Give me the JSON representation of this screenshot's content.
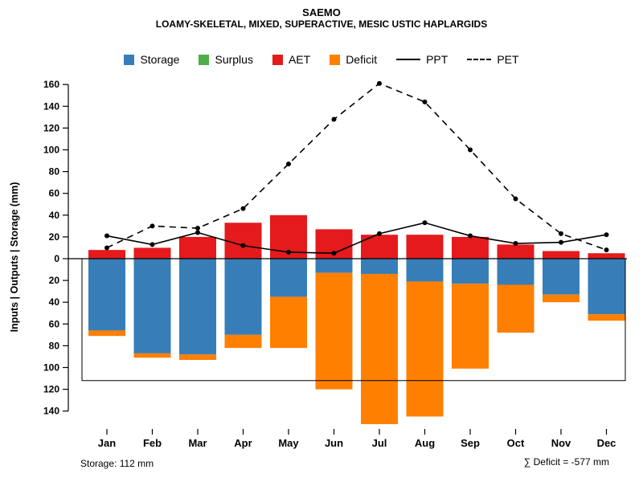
{
  "header": {
    "title": "SAEMO",
    "subtitle": "LOAMY-SKELETAL, MIXED, SUPERACTIVE, MESIC USTIC HAPLARGIDS"
  },
  "footer": {
    "storage_label": "Storage: 112 mm",
    "deficit_label": "∑ Deficit = -577 mm"
  },
  "colors": {
    "storage": "#377eb8",
    "surplus": "#4daf4a",
    "aet": "#e41a1c",
    "deficit": "#ff7f00",
    "line": "#000000",
    "background": "#ffffff"
  },
  "legend": [
    {
      "label": "Storage",
      "swatch": "box",
      "color": "#377eb8"
    },
    {
      "label": "Surplus",
      "swatch": "box",
      "color": "#4daf4a"
    },
    {
      "label": "AET",
      "swatch": "box",
      "color": "#e41a1c"
    },
    {
      "label": "Deficit",
      "swatch": "box",
      "color": "#ff7f00"
    },
    {
      "label": "PPT",
      "swatch": "line-solid",
      "color": "#000000"
    },
    {
      "label": "PET",
      "swatch": "line-dashed",
      "color": "#000000"
    }
  ],
  "chart_data": {
    "type": "bar",
    "title": "SAEMO",
    "subtitle": "LOAMY-SKELETAL, MIXED, SUPERACTIVE, MESIC USTIC HAPLARGIDS",
    "ylabel": "Inputs | Outputs | Storage  (mm)",
    "xlabel": "",
    "categories": [
      "Jan",
      "Feb",
      "Mar",
      "Apr",
      "May",
      "Jun",
      "Jul",
      "Aug",
      "Sep",
      "Oct",
      "Nov",
      "Dec"
    ],
    "series": [
      {
        "name": "AET",
        "type": "bar",
        "direction": "up",
        "color": "#e41a1c",
        "values": [
          8,
          10,
          20,
          33,
          40,
          27,
          22,
          22,
          20,
          13,
          7,
          5
        ]
      },
      {
        "name": "Surplus",
        "type": "bar",
        "direction": "up",
        "color": "#4daf4a",
        "values": [
          0,
          0,
          0,
          0,
          0,
          0,
          0,
          0,
          0,
          0,
          0,
          0
        ]
      },
      {
        "name": "Storage",
        "type": "bar",
        "direction": "down",
        "color": "#377eb8",
        "values": [
          66,
          87,
          88,
          70,
          35,
          13,
          14,
          21,
          23,
          24,
          33,
          51
        ]
      },
      {
        "name": "Deficit",
        "type": "bar",
        "direction": "down",
        "stacked_below": "Storage",
        "color": "#ff7f00",
        "values": [
          5,
          4,
          5,
          12,
          47,
          107,
          138,
          124,
          78,
          44,
          7,
          6
        ]
      },
      {
        "name": "PPT",
        "type": "line",
        "style": "solid",
        "color": "#000000",
        "values": [
          21,
          13,
          24,
          12,
          6,
          5,
          23,
          33,
          21,
          14,
          15,
          22
        ]
      },
      {
        "name": "PET",
        "type": "line",
        "style": "dashed",
        "color": "#000000",
        "values": [
          10,
          30,
          28,
          46,
          87,
          128,
          161,
          144,
          100,
          55,
          23,
          8
        ]
      }
    ],
    "y_ticks_up": [
      0,
      20,
      40,
      60,
      80,
      100,
      120,
      140,
      160
    ],
    "y_ticks_down": [
      20,
      40,
      60,
      80,
      100,
      120,
      140
    ],
    "ylim": [
      -157,
      170
    ],
    "grid": false,
    "legend_position": "top",
    "storage_capacity_mm": 112,
    "deficit_total_mm": -577
  }
}
